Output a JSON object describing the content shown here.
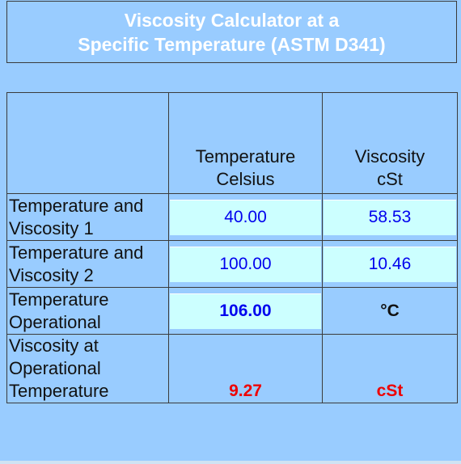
{
  "header": {
    "title_line1": "Viscosity Calculator at a",
    "title_line2": "Specific Temperature (ASTM D341)"
  },
  "table": {
    "col_headers": {
      "temperature": "Temperature\nCelsius",
      "viscosity": "Viscosity\ncSt"
    },
    "rows": [
      {
        "label": "Temperature and Viscosity 1",
        "temperature": "40.00",
        "viscosity": "58.53"
      },
      {
        "label": "Temperature and Viscosity 2",
        "temperature": "100.00",
        "viscosity": "10.46"
      }
    ],
    "operational": {
      "label": "Temperature Operational",
      "temperature": "106.00",
      "unit": "°C"
    },
    "result": {
      "label": "Viscosity at Operational Temperature",
      "value": "9.27",
      "unit": "cSt"
    }
  },
  "colors": {
    "background": "#99ccff",
    "input_fill": "#ccffff",
    "value_blue": "#0000ee",
    "result_red": "#ee0000"
  }
}
